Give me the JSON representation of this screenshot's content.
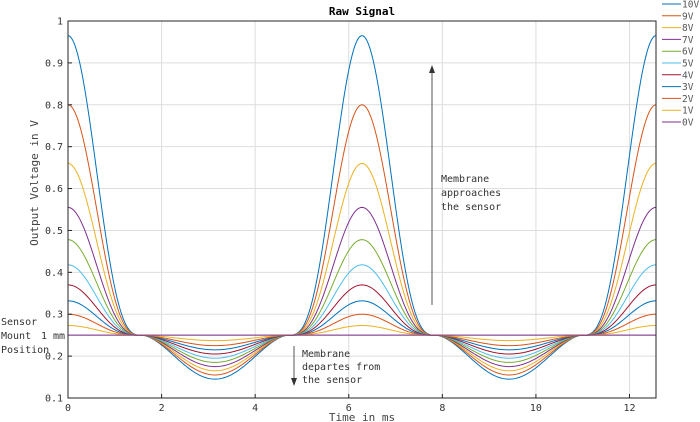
{
  "chart_data": {
    "type": "line",
    "title": "Raw Signal",
    "xlabel": "Time in ms",
    "ylabel": "Output Voltage in V",
    "xlim": [
      0,
      12.566
    ],
    "ylim": [
      0.1,
      1.0
    ],
    "x_ticks": [
      "0",
      "2",
      "4",
      "6",
      "8",
      "10",
      "12"
    ],
    "x_tick_values": [
      0,
      2,
      4,
      6,
      8,
      10,
      12
    ],
    "y_ticks": [
      "0.1",
      "0.2",
      "0.3",
      "0.4",
      "0.5",
      "0.6",
      "0.7",
      "0.8",
      "0.9",
      "1"
    ],
    "y_tick_values": [
      0.1,
      0.2,
      0.3,
      0.4,
      0.5,
      0.6,
      0.7,
      0.8,
      0.9,
      1.0
    ],
    "grid": true,
    "legend_position": "top-right",
    "baseline_value": 0.25,
    "crossing_times_ms": [
      1.571,
      4.712,
      7.854,
      10.996
    ],
    "series": [
      {
        "name": "10V",
        "color": "#0072bd",
        "peak": 0.965,
        "trough": 0.145
      },
      {
        "name": "9V",
        "color": "#d95319",
        "peak": 0.8,
        "trough": 0.155
      },
      {
        "name": "8V",
        "color": "#edb120",
        "peak": 0.66,
        "trough": 0.165
      },
      {
        "name": "7V",
        "color": "#7e2f8e",
        "peak": 0.555,
        "trough": 0.175
      },
      {
        "name": "6V",
        "color": "#77ac30",
        "peak": 0.478,
        "trough": 0.185
      },
      {
        "name": "5V",
        "color": "#4dbeee",
        "peak": 0.418,
        "trough": 0.195
      },
      {
        "name": "4V",
        "color": "#a2142f",
        "peak": 0.37,
        "trough": 0.205
      },
      {
        "name": "3V",
        "color": "#0072bd",
        "peak": 0.332,
        "trough": 0.215
      },
      {
        "name": "2V",
        "color": "#d95319",
        "peak": 0.3,
        "trough": 0.225
      },
      {
        "name": "1V",
        "color": "#edb120",
        "peak": 0.273,
        "trough": 0.237
      },
      {
        "name": "0V",
        "color": "#7e2f8e",
        "peak": 0.25,
        "trough": 0.25
      }
    ],
    "annotations": {
      "approaches": [
        "Membrane",
        "approaches",
        "the sensor"
      ],
      "departs": [
        "Membrane",
        "departes from",
        "the sensor"
      ],
      "mount": [
        "Sensor",
        "Mount",
        "Position"
      ],
      "mount_value": "1 mm"
    },
    "colors": {
      "axis": "#262626",
      "grid": "#dedede",
      "baseline": "#aaaaaa",
      "arrow": "#555555"
    }
  }
}
